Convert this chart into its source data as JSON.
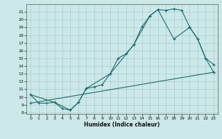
{
  "xlabel": "Humidex (Indice chaleur)",
  "bg_color": "#cce8e8",
  "line_color": "#1a6b6b",
  "grid_color": "#aacccc",
  "xlim": [
    -0.5,
    23.5
  ],
  "ylim": [
    7.8,
    22.0
  ],
  "xticks": [
    0,
    1,
    2,
    3,
    4,
    5,
    6,
    7,
    8,
    9,
    10,
    11,
    12,
    13,
    14,
    15,
    16,
    17,
    18,
    19,
    20,
    21,
    22,
    23
  ],
  "yticks": [
    8,
    9,
    10,
    11,
    12,
    13,
    14,
    15,
    16,
    17,
    18,
    19,
    20,
    21
  ],
  "line1_x": [
    0,
    1,
    2,
    3,
    4,
    5,
    6,
    7,
    8,
    9,
    10,
    11,
    12,
    13,
    14,
    15,
    16,
    17,
    18,
    19,
    20,
    21,
    22,
    23
  ],
  "line1_y": [
    10.3,
    9.2,
    9.2,
    9.3,
    8.5,
    8.3,
    9.3,
    11.1,
    11.3,
    11.6,
    13.0,
    15.0,
    15.6,
    16.8,
    19.1,
    20.5,
    21.3,
    21.2,
    21.4,
    21.2,
    19.0,
    17.5,
    15.0,
    14.2
  ],
  "line2_x": [
    0,
    3,
    5,
    6,
    7,
    10,
    13,
    15,
    16,
    18,
    20,
    21,
    22,
    23
  ],
  "line2_y": [
    10.3,
    9.3,
    8.3,
    9.3,
    11.1,
    13.0,
    16.8,
    20.5,
    21.3,
    17.5,
    19.0,
    17.5,
    15.0,
    13.2
  ],
  "line3_x": [
    0,
    23
  ],
  "line3_y": [
    9.2,
    13.2
  ]
}
